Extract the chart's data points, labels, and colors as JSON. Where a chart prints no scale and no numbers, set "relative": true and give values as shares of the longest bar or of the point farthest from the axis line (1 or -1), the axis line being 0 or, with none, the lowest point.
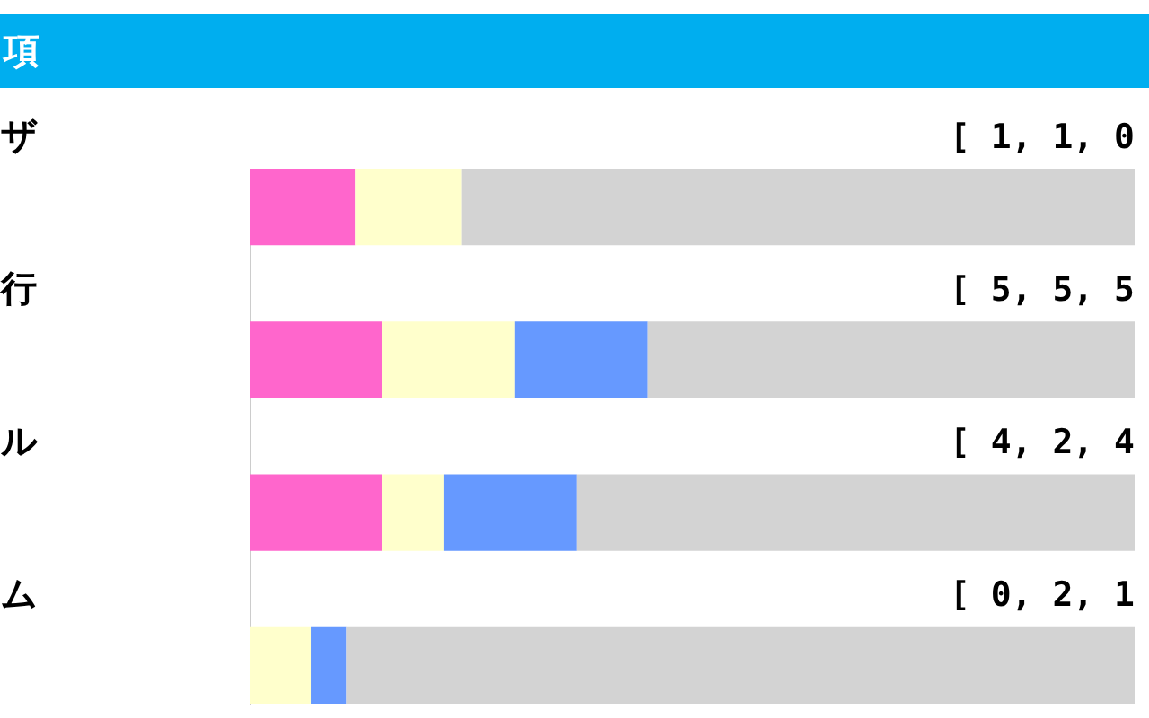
{
  "chart_data": {
    "type": "bar",
    "title": "項",
    "orientation": "horizontal",
    "stacked": true,
    "relative": true,
    "categories": [
      "ザ",
      "行",
      "ル",
      "ム"
    ],
    "series": [
      {
        "color": "#ff66cc",
        "values": [
          0.12,
          0.15,
          0.15,
          0
        ]
      },
      {
        "color": "#ffffcc",
        "values": [
          0.12,
          0.15,
          0.07,
          0.07
        ]
      },
      {
        "color": "#6699ff",
        "values": [
          0,
          0.15,
          0.15,
          0.04
        ]
      },
      {
        "color": "#d3d3d3",
        "values": [
          0.76,
          0.55,
          0.63,
          0.89
        ]
      }
    ],
    "annotations": [
      "[ 1, 1, 0",
      "[ 5, 5, 5",
      "[ 4, 2, 4",
      "[ 0, 2, 1"
    ]
  }
}
